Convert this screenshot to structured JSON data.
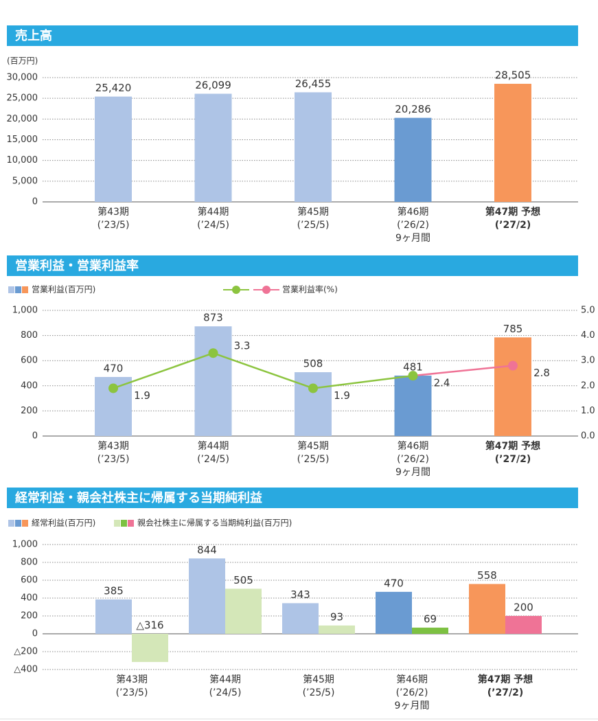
{
  "chart_data": [
    {
      "type": "bar",
      "title": "売上高",
      "y_unit": "(百万円)",
      "categories": [
        "第43期\n(’23/5)",
        "第44期\n(’24/5)",
        "第45期\n(’25/5)",
        "第46期\n(’26/2)\n9ヶ月間",
        "第47期 予想\n(’27/2)"
      ],
      "series": [
        {
          "values": [
            25420,
            26099,
            26455,
            20286,
            28505
          ],
          "value_labels": [
            "25,420",
            "26,099",
            "26,455",
            "20,286",
            "28,505"
          ],
          "colors": [
            "#aec4e6",
            "#aec4e6",
            "#aec4e6",
            "#6a9bd2",
            "#f7965a"
          ]
        }
      ],
      "ylim": [
        0,
        30000
      ],
      "yticks": [
        0,
        {
          "value": 5000,
          "label": "5,000"
        },
        {
          "value": 10000,
          "label": "10,000"
        },
        {
          "value": 15000,
          "label": "15,000"
        },
        {
          "value": 20000,
          "label": "20,000"
        },
        {
          "value": 25000,
          "label": "25,000"
        },
        {
          "value": 30000,
          "label": "30,000"
        }
      ],
      "grid": true
    },
    {
      "type": "combo",
      "title": "営業利益・営業利益率",
      "categories": [
        "第43期\n(’23/5)",
        "第44期\n(’24/5)",
        "第45期\n(’25/5)",
        "第46期\n(’26/2)\n9ヶ月間",
        "第47期 予想\n(’27/2)"
      ],
      "series": [
        {
          "name": "営業利益(百万円)",
          "values": [
            470,
            873,
            508,
            481,
            785
          ],
          "colors": [
            "#aec4e6",
            "#aec4e6",
            "#aec4e6",
            "#6a9bd2",
            "#f7965a"
          ]
        },
        {
          "name": "営業利益率(%)",
          "axis": "y2",
          "values": [
            1.9,
            3.3,
            1.9,
            2.4,
            2.8
          ],
          "colors": [
            "#8cc43f",
            "#8cc43f",
            "#8cc43f",
            "#8cc43f",
            "#ef7396"
          ]
        }
      ],
      "ylim": [
        0,
        1000
      ],
      "yticks": [
        0,
        200,
        400,
        600,
        800,
        {
          "value": 1000,
          "label": "1,000"
        }
      ],
      "y2lim": [
        0,
        5
      ],
      "y2ticks": [
        {
          "value": 0,
          "label": "0.0"
        },
        {
          "value": 1,
          "label": "1.0"
        },
        {
          "value": 2,
          "label": "2.0"
        },
        {
          "value": 3,
          "label": "3.0"
        },
        {
          "value": 4,
          "label": "4.0"
        },
        {
          "value": 5,
          "label": "5.0"
        }
      ],
      "grid": true
    },
    {
      "type": "bar",
      "title": "経常利益・親会社株主に帰属する当期純利益",
      "categories": [
        "第43期\n(’23/5)",
        "第44期\n(’24/5)",
        "第45期\n(’25/5)",
        "第46期\n(’26/2)\n9ヶ月間",
        "第47期 予想\n(’27/2)"
      ],
      "series": [
        {
          "name": "経常利益(百万円)",
          "values": [
            385,
            844,
            343,
            470,
            558
          ],
          "colors": [
            "#aec4e6",
            "#aec4e6",
            "#aec4e6",
            "#6a9bd2",
            "#f7965a"
          ]
        },
        {
          "name": "親会社株主に帰属する当期純利益(百万円)",
          "values": [
            -316,
            505,
            93,
            69,
            200
          ],
          "value_labels": [
            "△316",
            "505",
            "93",
            "69",
            "200"
          ],
          "colors": [
            "#d4e7b8",
            "#d4e7b8",
            "#d4e7b8",
            "#7dc142",
            "#ef7396"
          ]
        }
      ],
      "ylim": [
        -400,
        1000
      ],
      "yticks": [
        {
          "value": -400,
          "label": "△400"
        },
        {
          "value": -200,
          "label": "△200"
        },
        0,
        200,
        400,
        600,
        800,
        {
          "value": 1000,
          "label": "1,000"
        }
      ],
      "grid": true
    }
  ]
}
